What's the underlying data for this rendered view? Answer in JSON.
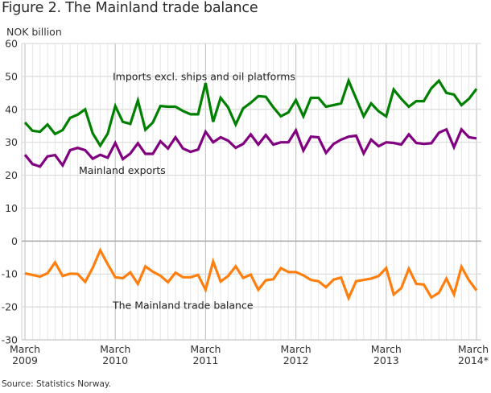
{
  "title": "Figure 2. The Mainland trade balance",
  "source": "Source: Statistics Norway.",
  "chart_data": {
    "type": "line",
    "title": "Figure 2. The Mainland trade balance",
    "xlabel": "",
    "ylabel": "NOK billion",
    "ylim": [
      -30,
      60
    ],
    "yticks": [
      60,
      50,
      40,
      30,
      20,
      10,
      0,
      -10,
      -20,
      -30
    ],
    "grid": true,
    "x_start": "March 2009",
    "x_end": "March 2014",
    "x_frequency": "monthly",
    "xtick_labels": [
      {
        "index": 0,
        "line1": "March",
        "line2": "2009"
      },
      {
        "index": 12,
        "line1": "March",
        "line2": "2010"
      },
      {
        "index": 24,
        "line1": "March",
        "line2": "2011"
      },
      {
        "index": 36,
        "line1": "March",
        "line2": "2012"
      },
      {
        "index": 48,
        "line1": "March",
        "line2": "2013"
      },
      {
        "index": 60,
        "line1": "March",
        "line2": "2014*"
      }
    ],
    "series": [
      {
        "name": "Imports excl. ships and oil platforms",
        "color": "#008000",
        "label_anchor_index": 12,
        "label_value": 50,
        "values": [
          36.0,
          33.5,
          33.2,
          35.4,
          32.5,
          33.7,
          37.4,
          38.4,
          40.0,
          32.7,
          29.0,
          32.6,
          41.0,
          36.2,
          35.6,
          42.7,
          33.8,
          36.0,
          41.0,
          40.8,
          40.8,
          39.5,
          38.5,
          38.5,
          48.0,
          36.2,
          43.5,
          40.6,
          35.4,
          40.3,
          42.0,
          44.0,
          43.8,
          40.6,
          37.9,
          39.1,
          42.8,
          37.9,
          43.5,
          43.5,
          40.8,
          41.3,
          41.8,
          48.7,
          43.3,
          37.9,
          41.8,
          39.4,
          37.9,
          46.0,
          43.2,
          40.8,
          42.5,
          42.5,
          46.4,
          48.7,
          45.0,
          44.5,
          41.3,
          43.2,
          46.2
        ]
      },
      {
        "name": "Mainland exports",
        "color": "#800080",
        "label_anchor_index": 7,
        "label_value": 21.5,
        "values": [
          26.2,
          23.4,
          22.6,
          25.7,
          26.1,
          23.0,
          27.6,
          28.3,
          27.6,
          25.0,
          26.2,
          25.3,
          29.8,
          24.9,
          26.6,
          29.7,
          26.5,
          26.5,
          30.3,
          28.1,
          31.5,
          28.1,
          27.1,
          27.8,
          33.2,
          30.0,
          31.5,
          30.5,
          28.3,
          29.5,
          32.4,
          29.3,
          32.2,
          29.3,
          30.0,
          30.0,
          33.6,
          27.5,
          31.7,
          31.5,
          26.8,
          29.5,
          30.8,
          31.7,
          32.0,
          26.6,
          30.8,
          28.8,
          30.0,
          29.8,
          29.3,
          32.4,
          29.8,
          29.5,
          29.7,
          32.9,
          33.9,
          28.5,
          33.9,
          31.5,
          31.2
        ]
      },
      {
        "name": "The Mainland trade balance",
        "color": "#ff7f0e",
        "label_anchor_index": 28,
        "label_value": -19.5,
        "values": [
          -9.8,
          -10.3,
          -10.8,
          -9.8,
          -6.5,
          -10.6,
          -9.9,
          -10.0,
          -12.4,
          -8.1,
          -2.8,
          -7.0,
          -11.0,
          -11.3,
          -9.5,
          -13.0,
          -7.7,
          -9.3,
          -10.5,
          -12.5,
          -9.6,
          -11.0,
          -11.0,
          -10.3,
          -14.8,
          -6.2,
          -12.3,
          -10.6,
          -7.7,
          -11.2,
          -10.2,
          -14.8,
          -11.9,
          -11.6,
          -8.2,
          -9.4,
          -9.4,
          -10.4,
          -11.8,
          -12.2,
          -14.0,
          -11.7,
          -11.1,
          -17.3,
          -12.2,
          -11.8,
          -11.4,
          -10.6,
          -8.2,
          -16.2,
          -14.3,
          -8.4,
          -13.0,
          -13.2,
          -17.1,
          -15.7,
          -11.4,
          -16.2,
          -7.8,
          -11.9,
          -15.0
        ]
      }
    ]
  }
}
